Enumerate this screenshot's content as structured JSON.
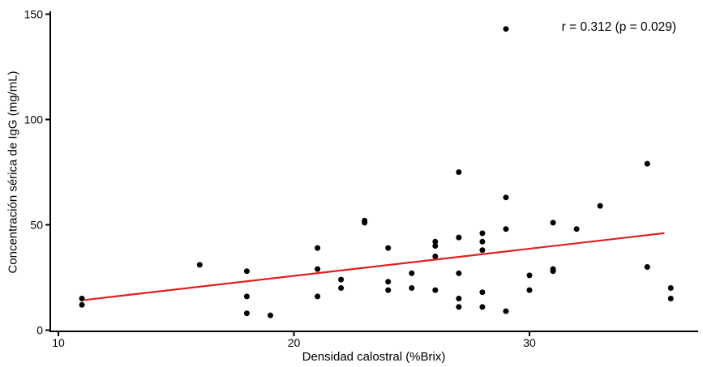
{
  "chart_data": {
    "type": "scatter",
    "title": "",
    "xlabel": "Densidad calostral (%Brix)",
    "ylabel": "Concentración sérica de IgG (mg/mL)",
    "annotation": "r = 0.312 (p = 0.029)",
    "stats": {
      "r": 0.312,
      "p": 0.029
    },
    "grid": false,
    "legend_position": "none",
    "xlim": [
      9.7,
      37.1
    ],
    "ylim": [
      0,
      150
    ],
    "xticks": [
      10,
      20,
      30
    ],
    "yticks": [
      0,
      50,
      100,
      150
    ],
    "point_color": "#000000",
    "trend_color": "#e02020",
    "axis_color": "#000000",
    "points": [
      [
        11,
        15
      ],
      [
        11,
        12
      ],
      [
        16,
        31
      ],
      [
        18,
        28
      ],
      [
        18,
        16
      ],
      [
        18,
        8
      ],
      [
        19,
        7
      ],
      [
        21,
        39
      ],
      [
        21,
        29
      ],
      [
        21,
        16
      ],
      [
        22,
        24
      ],
      [
        22,
        20
      ],
      [
        23,
        52
      ],
      [
        23,
        51
      ],
      [
        24,
        39
      ],
      [
        24,
        23
      ],
      [
        24,
        19
      ],
      [
        25,
        27
      ],
      [
        25,
        20
      ],
      [
        26,
        42
      ],
      [
        26,
        40
      ],
      [
        26,
        35
      ],
      [
        26,
        19
      ],
      [
        27,
        75
      ],
      [
        27,
        44
      ],
      [
        27,
        27
      ],
      [
        27,
        15
      ],
      [
        27,
        11
      ],
      [
        28,
        46
      ],
      [
        28,
        42
      ],
      [
        28,
        38
      ],
      [
        28,
        18
      ],
      [
        28,
        11
      ],
      [
        29,
        143
      ],
      [
        29,
        63
      ],
      [
        29,
        48
      ],
      [
        29,
        9
      ],
      [
        30,
        26
      ],
      [
        30,
        19
      ],
      [
        31,
        51
      ],
      [
        31,
        29
      ],
      [
        31,
        28
      ],
      [
        32,
        48
      ],
      [
        33,
        59
      ],
      [
        35,
        79
      ],
      [
        35,
        30
      ],
      [
        36,
        20
      ],
      [
        36,
        15
      ]
    ],
    "trendline": {
      "x1": 11.1,
      "y1": 14.3,
      "x2": 35.7,
      "y2": 46.0
    }
  }
}
